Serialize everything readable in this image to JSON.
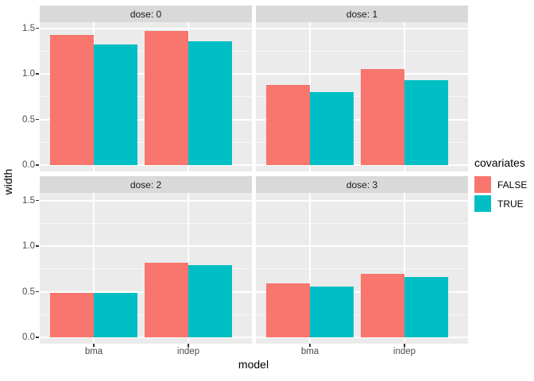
{
  "figure": {
    "kind": "ggplot2 faceted grouped bar chart"
  },
  "legend": {
    "title": "covariates",
    "entries": [
      {
        "label": "FALSE",
        "color": "#F8766D"
      },
      {
        "label": "TRUE",
        "color": "#00BFC4"
      }
    ]
  },
  "chart_data": {
    "type": "bar",
    "layout": "2x2 facet grid by dose, dodged bars by covariates",
    "xlabel": "model",
    "ylabel": "width",
    "categories": [
      "bma",
      "indep"
    ],
    "series_names": [
      "FALSE",
      "TRUE"
    ],
    "facets": [
      {
        "label": "dose: 0",
        "series": [
          {
            "name": "FALSE",
            "values": [
              1.43,
              1.47
            ]
          },
          {
            "name": "TRUE",
            "values": [
              1.32,
              1.36
            ]
          }
        ]
      },
      {
        "label": "dose: 1",
        "series": [
          {
            "name": "FALSE",
            "values": [
              0.88,
              1.05
            ]
          },
          {
            "name": "TRUE",
            "values": [
              0.8,
              0.93
            ]
          }
        ]
      },
      {
        "label": "dose: 2",
        "series": [
          {
            "name": "FALSE",
            "values": [
              0.49,
              0.82
            ]
          },
          {
            "name": "TRUE",
            "values": [
              0.49,
              0.79
            ]
          }
        ]
      },
      {
        "label": "dose: 3",
        "series": [
          {
            "name": "FALSE",
            "values": [
              0.59,
              0.7
            ]
          },
          {
            "name": "TRUE",
            "values": [
              0.56,
              0.66
            ]
          }
        ]
      }
    ],
    "ylim": [
      0,
      1.56
    ],
    "yticks": [
      0,
      0.5,
      1.0,
      1.5
    ],
    "ytick_labels": [
      "0.0",
      "0.5",
      "1.0",
      "1.5"
    ],
    "yticks_minor": [
      0.25,
      0.75,
      1.25
    ],
    "grid": "white major and minor horizontal lines, white vertical lines at category centers",
    "legend_position": "right",
    "colors": {
      "FALSE": "#F8766D",
      "TRUE": "#00BFC4",
      "panel_background": "#EBEBEB",
      "strip_background": "#D9D9D9",
      "gridline": "#FFFFFF",
      "tick_text": "#4D4D4D",
      "strip_text": "#1A1A1A"
    }
  }
}
